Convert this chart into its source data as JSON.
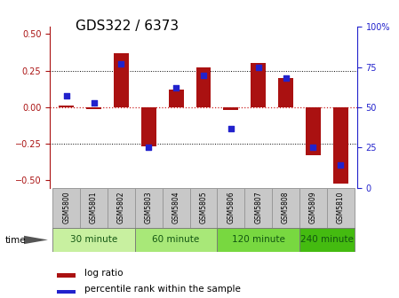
{
  "title": "GDS322 / 6373",
  "samples": [
    "GSM5800",
    "GSM5801",
    "GSM5802",
    "GSM5803",
    "GSM5804",
    "GSM5805",
    "GSM5806",
    "GSM5807",
    "GSM5808",
    "GSM5809",
    "GSM5810"
  ],
  "log_ratio": [
    0.01,
    -0.01,
    0.37,
    -0.27,
    0.12,
    0.27,
    -0.02,
    0.3,
    0.2,
    -0.33,
    -0.52
  ],
  "percentile": [
    57,
    53,
    77,
    25,
    62,
    70,
    37,
    75,
    68,
    25,
    14
  ],
  "groups": [
    {
      "label": "30 minute",
      "samples": [
        0,
        1,
        2
      ],
      "color": "#c8f0a0"
    },
    {
      "label": "60 minute",
      "samples": [
        3,
        4,
        5
      ],
      "color": "#a8e878"
    },
    {
      "label": "120 minute",
      "samples": [
        6,
        7,
        8
      ],
      "color": "#78d840"
    },
    {
      "label": "240 minute",
      "samples": [
        9,
        10
      ],
      "color": "#44bb10"
    }
  ],
  "bar_color": "#aa1111",
  "dot_color": "#2222cc",
  "ylim": [
    -0.55,
    0.55
  ],
  "ylim_right": [
    0,
    100
  ],
  "yticks_left": [
    -0.5,
    -0.25,
    0,
    0.25,
    0.5
  ],
  "yticks_right": [
    0,
    25,
    50,
    75,
    100
  ],
  "hline_color": "#cc2222",
  "grid_color": "black",
  "title_fontsize": 11,
  "tick_fontsize": 7,
  "bar_width": 0.55,
  "dot_size": 18,
  "time_label": "time",
  "legend_log_ratio": "log ratio",
  "legend_percentile": "percentile rank within the sample",
  "sample_area_color": "#c8c8c8",
  "sample_border_color": "#999999"
}
